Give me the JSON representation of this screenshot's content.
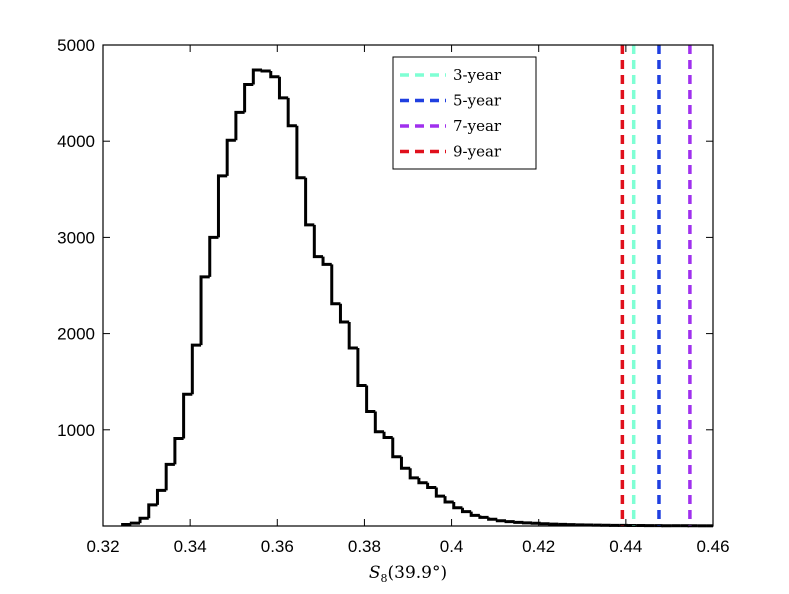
{
  "chart_data": {
    "type": "histogram",
    "title": "",
    "xlabel": "S_8(39.9°)",
    "xlabel_parts": {
      "main": "S",
      "sub": "8",
      "arg": "(39.9°)"
    },
    "ylabel": "",
    "xlim": [
      0.32,
      0.46
    ],
    "ylim": [
      0,
      5000
    ],
    "xticks": [
      0.32,
      0.34,
      0.36,
      0.38,
      0.4,
      0.42,
      0.44,
      0.46
    ],
    "xtick_labels": [
      "0.32",
      "0.34",
      "0.36",
      "0.38",
      "0.4",
      "0.42",
      "0.44",
      "0.46"
    ],
    "yticks": [
      1000,
      2000,
      3000,
      4000,
      5000
    ],
    "ytick_labels": [
      "1000",
      "2000",
      "3000",
      "4000",
      "5000"
    ],
    "grid": false,
    "legend_position": "top-center-right",
    "histogram": {
      "color": "#000000",
      "bin_edges": [
        0.3245,
        0.3265,
        0.3285,
        0.3305,
        0.3325,
        0.3345,
        0.3365,
        0.3385,
        0.3405,
        0.3425,
        0.3445,
        0.3465,
        0.3485,
        0.3505,
        0.3525,
        0.3545,
        0.3565,
        0.3585,
        0.3605,
        0.3625,
        0.3645,
        0.3665,
        0.3685,
        0.3705,
        0.3725,
        0.3745,
        0.3765,
        0.3785,
        0.3805,
        0.3825,
        0.3845,
        0.3865,
        0.3885,
        0.3905,
        0.3925,
        0.3945,
        0.3965,
        0.3985,
        0.4005,
        0.4025,
        0.4045,
        0.4065,
        0.4085,
        0.4105,
        0.4125,
        0.4145,
        0.4165,
        0.4185,
        0.4205,
        0.4225,
        0.4245,
        0.4265,
        0.4285,
        0.4305,
        0.4325,
        0.4345,
        0.4365,
        0.4385,
        0.4405,
        0.4425,
        0.4445,
        0.4465,
        0.4485,
        0.4505,
        0.4525,
        0.4545,
        0.4565,
        0.4585,
        0.46
      ],
      "counts": [
        15,
        30,
        80,
        220,
        370,
        640,
        910,
        1370,
        1880,
        2590,
        3000,
        3640,
        4010,
        4300,
        4590,
        4740,
        4730,
        4670,
        4450,
        4160,
        3620,
        3130,
        2800,
        2720,
        2310,
        2120,
        1850,
        1460,
        1190,
        980,
        920,
        720,
        600,
        500,
        450,
        400,
        310,
        250,
        190,
        150,
        110,
        90,
        70,
        55,
        45,
        38,
        32,
        28,
        24,
        20,
        17,
        14,
        12,
        10,
        9,
        8,
        7,
        6,
        5,
        5,
        4,
        4,
        3,
        3,
        3,
        2,
        2,
        2
      ]
    },
    "vlines": [
      {
        "name": "3-year",
        "x": 0.4418,
        "color": "#7fffd4"
      },
      {
        "name": "5-year",
        "x": 0.4476,
        "color": "#1f3fe0"
      },
      {
        "name": "7-year",
        "x": 0.4547,
        "color": "#a030ee"
      },
      {
        "name": "9-year",
        "x": 0.4392,
        "color": "#e0101c"
      }
    ],
    "legend": [
      "3-year",
      "5-year",
      "7-year",
      "9-year"
    ]
  }
}
